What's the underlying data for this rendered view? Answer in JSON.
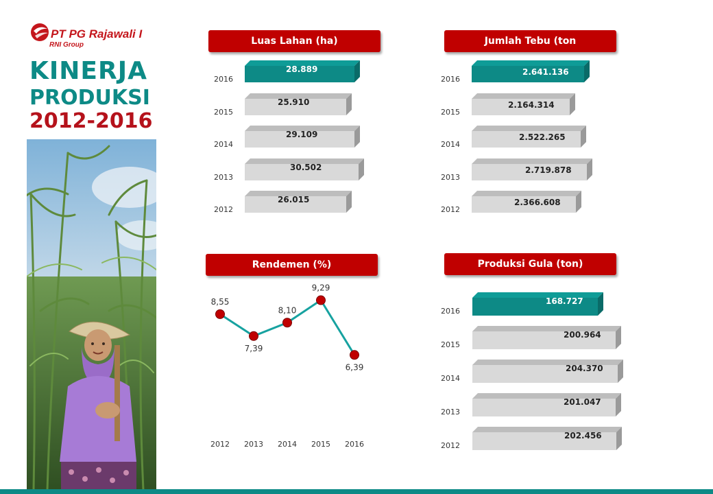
{
  "logo": {
    "name": "PT PG Rajawali I",
    "sub": "RNI Group"
  },
  "title": {
    "line1": "KINERJA",
    "line2": "PRODUKSI",
    "line3": "2012-2016"
  },
  "colors": {
    "highlight_bar": "#0d8a86",
    "plain_bar": "#d9d9d9",
    "header_bg": "#c00000",
    "marker": "#c00000",
    "line": "#17a2a0"
  },
  "chart_data": [
    {
      "type": "bar",
      "title": "Luas Lahan (ha)",
      "categories": [
        "2016",
        "2015",
        "2014",
        "2013",
        "2012"
      ],
      "values": [
        28889,
        25910,
        29109,
        30502,
        26015
      ],
      "labels": [
        "28.889",
        "25.910",
        "29.109",
        "30.502",
        "26.015"
      ],
      "highlight_index": 0
    },
    {
      "type": "bar",
      "title": "Jumlah Tebu (ton",
      "categories": [
        "2016",
        "2015",
        "2014",
        "2013",
        "2012"
      ],
      "values": [
        2641136,
        2164314,
        2522265,
        2719878,
        2366608
      ],
      "labels": [
        "2.641.136",
        "2.164.314",
        "2.522.265",
        "2.719.878",
        "2.366.608"
      ],
      "highlight_index": 0
    },
    {
      "type": "line",
      "title": "Rendemen (%)",
      "x": [
        "2012",
        "2013",
        "2014",
        "2015",
        "2016"
      ],
      "y": [
        8.55,
        7.39,
        8.1,
        9.29,
        6.39
      ],
      "labels": [
        "8,55",
        "7,39",
        "8,10",
        "9,29",
        "6,39"
      ],
      "label_position": [
        "above",
        "below",
        "above",
        "above",
        "below"
      ]
    },
    {
      "type": "bar",
      "title": "Produksi Gula (ton)",
      "categories": [
        "2016",
        "2015",
        "2014",
        "2013",
        "2012"
      ],
      "values": [
        168727,
        200964,
        204370,
        201047,
        202456
      ],
      "labels": [
        "168.727",
        "200.964",
        "204.370",
        "201.047",
        "202.456"
      ],
      "highlight_index": 0
    }
  ]
}
